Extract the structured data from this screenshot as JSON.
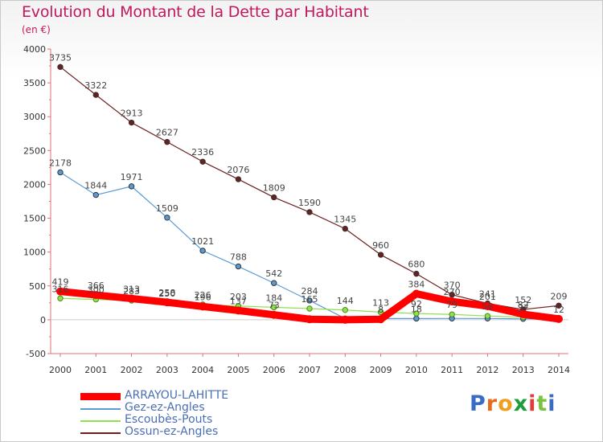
{
  "title": "Evolution du Montant de la Dette par Habitant",
  "subtitle": "(en €)",
  "logo": {
    "letters": [
      "P",
      "r",
      "o",
      "x",
      "i",
      "t",
      "i"
    ],
    "colors": [
      "#3a6cc4",
      "#e86a1a",
      "#f0a020",
      "#1a9e3a",
      "#e23b3b",
      "#7cc242",
      "#3a6cc4"
    ]
  },
  "chart_data": {
    "type": "line",
    "x": [
      "2000",
      "2001",
      "2002",
      "2003",
      "2004",
      "2005",
      "2006",
      "2007",
      "2008",
      "2009",
      "2010",
      "2011",
      "2012",
      "2013",
      "2014"
    ],
    "ylim": [
      -500,
      4000
    ],
    "yticks": [
      -500,
      0,
      500,
      1000,
      1500,
      2000,
      2500,
      3000,
      3500,
      4000
    ],
    "grid": false,
    "legend_position": "bottom-left",
    "series": [
      {
        "name": "ARRAYOU-LAHITTE",
        "color": "#ff0000",
        "values": [
          419,
          366,
          313,
          258,
          196,
          137,
          73,
          8,
          0,
          8,
          384,
          270,
          201,
          82,
          12
        ],
        "labels": [
          "419",
          "366",
          "313",
          "258",
          "196",
          "137",
          "73",
          "",
          "",
          "8",
          "384",
          "270",
          "201",
          "82",
          "12"
        ]
      },
      {
        "name": "Gez-ez-Angles",
        "color": "#5b9bd5",
        "values": [
          2178,
          1844,
          1971,
          1509,
          1021,
          788,
          542,
          284,
          19,
          18,
          18,
          19,
          19,
          13,
          12
        ],
        "labels": [
          "2178",
          "1844",
          "1971",
          "1509",
          "1021",
          "788",
          "542",
          "284",
          "",
          "",
          "18",
          "",
          "",
          "",
          ""
        ]
      },
      {
        "name": "Escoubès-Pouts",
        "color": "#90e050",
        "values": [
          316,
          300,
          283,
          250,
          226,
          203,
          184,
          165,
          144,
          113,
          92,
          79,
          56,
          37,
          12
        ],
        "labels": [
          "316",
          "300",
          "283",
          "250",
          "226",
          "203",
          "184",
          "165",
          "144",
          "113",
          "92",
          "79",
          "56",
          "37",
          ""
        ]
      },
      {
        "name": "Ossun-ez-Angles",
        "color": "#6b1f1f",
        "values": [
          3735,
          3322,
          2913,
          2627,
          2336,
          2076,
          1809,
          1590,
          1345,
          960,
          680,
          370,
          241,
          152,
          209
        ],
        "labels": [
          "3735",
          "3322",
          "2913",
          "2627",
          "2336",
          "2076",
          "1809",
          "1590",
          "1345",
          "960",
          "680",
          "370",
          "241",
          "152",
          "209"
        ]
      }
    ]
  }
}
